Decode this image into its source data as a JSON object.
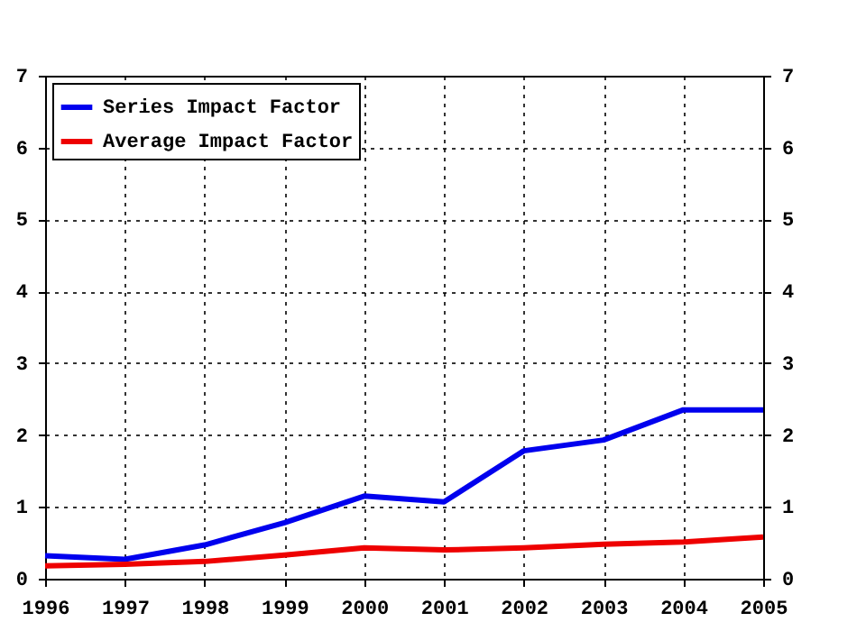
{
  "chart_data": {
    "type": "line",
    "x": [
      1996,
      1997,
      1998,
      1999,
      2000,
      2001,
      2002,
      2003,
      2004,
      2005
    ],
    "series": [
      {
        "name": "Series Impact Factor",
        "color": "#0000ee",
        "values": [
          0.32,
          0.27,
          0.47,
          0.78,
          1.15,
          1.07,
          1.78,
          1.93,
          2.35,
          2.35
        ]
      },
      {
        "name": "Average Impact Factor",
        "color": "#ee0000",
        "values": [
          0.18,
          0.2,
          0.24,
          0.33,
          0.43,
          0.4,
          0.43,
          0.48,
          0.51,
          0.58
        ]
      }
    ],
    "xlim": [
      1996,
      2005
    ],
    "xticks": [
      1996,
      1997,
      1998,
      1999,
      2000,
      2001,
      2002,
      2003,
      2004,
      2005
    ],
    "ylim": [
      0,
      7
    ],
    "yticks": [
      0,
      1,
      2,
      3,
      4,
      5,
      6,
      7
    ],
    "y2lim": [
      0,
      7
    ],
    "y2ticks": [
      0,
      1,
      2,
      3,
      4,
      5,
      6,
      7
    ],
    "grid": true,
    "legend": "top left",
    "marker": "none",
    "line_style": "solid"
  }
}
